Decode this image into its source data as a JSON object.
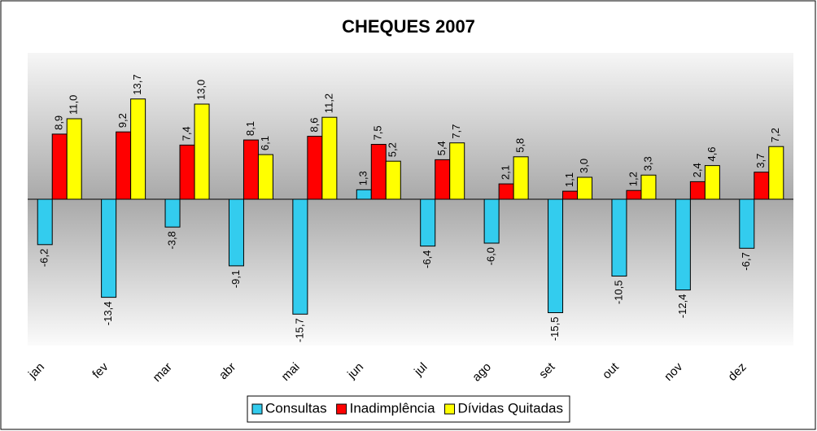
{
  "chart_data": {
    "type": "bar",
    "title": "CHEQUES 2007",
    "categories": [
      "jan",
      "fev",
      "mar",
      "abr",
      "mai",
      "jun",
      "jul",
      "ago",
      "set",
      "out",
      "nov",
      "dez"
    ],
    "series": [
      {
        "name": "Consultas",
        "color": "#33ccee",
        "values": [
          -6.2,
          -13.4,
          -3.8,
          -9.1,
          -15.7,
          1.3,
          -6.4,
          -6.0,
          -15.5,
          -10.5,
          -12.4,
          -6.7
        ],
        "value_labels": [
          "-6,2",
          "-13,4",
          "-3,8",
          "-9,1",
          "-15,7",
          "1,3",
          "-6,4",
          "-6,0",
          "-15,5",
          "-10,5",
          "-12,4",
          "-6,7"
        ]
      },
      {
        "name": "Inadimplência",
        "color": "#ff0000",
        "values": [
          8.9,
          9.2,
          7.4,
          8.1,
          8.6,
          7.5,
          5.4,
          2.1,
          1.1,
          1.2,
          2.4,
          3.7
        ],
        "value_labels": [
          "8,9",
          "9,2",
          "7,4",
          "8,1",
          "8,6",
          "7,5",
          "5,4",
          "2,1",
          "1,1",
          "1,2",
          "2,4",
          "3,7"
        ]
      },
      {
        "name": "Dívidas Quitadas",
        "color": "#ffff00",
        "values": [
          11.0,
          13.7,
          13.0,
          6.1,
          11.2,
          5.2,
          7.7,
          5.8,
          3.0,
          3.3,
          4.6,
          7.2
        ],
        "value_labels": [
          "11,0",
          "13,7",
          "13,0",
          "6,1",
          "11,2",
          "5,2",
          "7,7",
          "5,8",
          "3,0",
          "3,3",
          "4,6",
          "7,2"
        ]
      }
    ],
    "ylim": [
      -20,
      20
    ],
    "legend": "bottom"
  }
}
